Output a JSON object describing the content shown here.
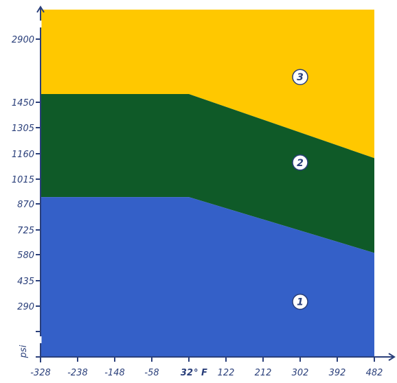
{
  "chart_data": {
    "type": "area",
    "x_tick_labels": [
      "-328",
      "-238",
      "-148",
      "-58",
      "32",
      "122",
      "212",
      "302",
      "392",
      "482"
    ],
    "x_tick_values": [
      -328,
      -238,
      -148,
      -58,
      32,
      122,
      212,
      302,
      392,
      482
    ],
    "x_unit_after_32": "° F",
    "y_tick_labels": [
      "290",
      "435",
      "580",
      "725",
      "870",
      "1015",
      "1160",
      "1305",
      "1450",
      "2900"
    ],
    "ylabel": "psi",
    "boundaries": [
      {
        "name": "",
        "x": [
          -328,
          32,
          482
        ],
        "y": [
          910,
          910,
          590
        ]
      },
      {
        "name": "",
        "x": [
          -328,
          32,
          482
        ],
        "y": [
          1640,
          1640,
          1135
        ]
      }
    ],
    "zones": [
      {
        "label": "1",
        "color": "#3460c8",
        "x": 302,
        "y": 315
      },
      {
        "label": "2",
        "color": "#0f5a28",
        "x": 302,
        "y": 1110
      },
      {
        "label": "3",
        "color": "#ffc800",
        "x": 302,
        "y": 2030
      }
    ],
    "colors": {
      "axis": "#2a3f7a",
      "label": "#2a3f7a"
    }
  }
}
